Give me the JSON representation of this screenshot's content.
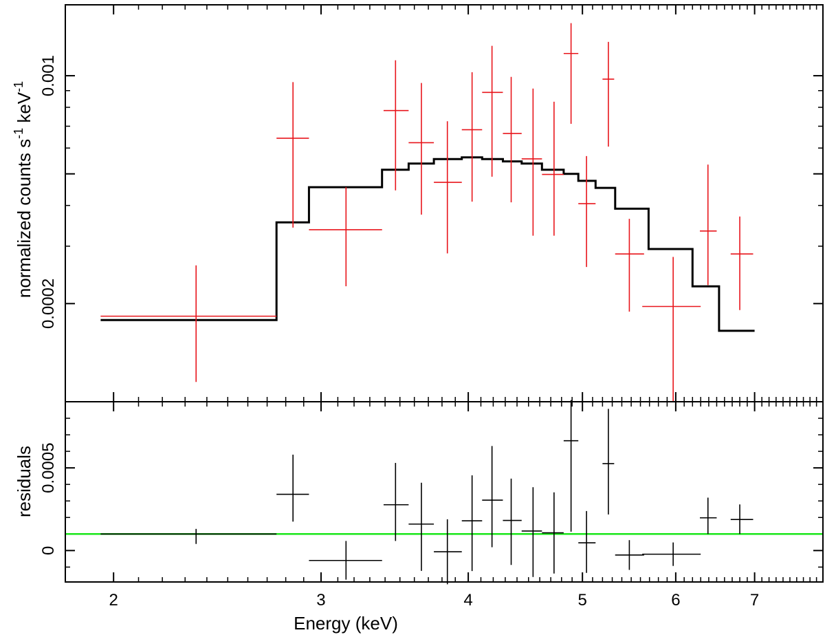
{
  "chart_data": [
    {
      "panel": "spectrum",
      "type": "scatter",
      "x_scale": "log",
      "y_scale": "log",
      "xlim": [
        1.82,
        8.0
      ],
      "ylim": [
        0.0001,
        0.00165
      ],
      "ylabel": "normalized counts s^-1 keV^-1",
      "ylabel_parts": {
        "main": "normalized counts s",
        "sup1": "-1",
        "mid": " keV",
        "sup2": "-1"
      },
      "yticks_labeled": [
        {
          "value": 0.0002,
          "label": "0.0002"
        },
        {
          "value": 0.001,
          "label": "0.001"
        }
      ],
      "yticks_major": [
        0.0001,
        0.0002,
        0.0005,
        0.001
      ],
      "yticks_minor": [
        0.0003,
        0.0004,
        0.0006,
        0.0007,
        0.0008,
        0.0009
      ],
      "series": [
        {
          "color": "#e8151b",
          "style": "crosses",
          "points": [
            {
              "x": 2.35,
              "xlo": 1.95,
              "xhi": 2.75,
              "y": 0.000183,
              "ylo": 0.000115,
              "yhi": 0.000262
            },
            {
              "x": 2.84,
              "xlo": 2.75,
              "xhi": 2.93,
              "y": 0.000643,
              "ylo": 0.000342,
              "yhi": 0.000956
            },
            {
              "x": 3.15,
              "xlo": 2.93,
              "xhi": 3.38,
              "y": 0.000337,
              "ylo": 0.000226,
              "yhi": 0.000455
            },
            {
              "x": 3.47,
              "xlo": 3.39,
              "xhi": 3.56,
              "y": 0.000782,
              "ylo": 0.000445,
              "yhi": 0.001115
            },
            {
              "x": 3.65,
              "xlo": 3.56,
              "xhi": 3.74,
              "y": 0.000623,
              "ylo": 0.000375,
              "yhi": 0.00095
            },
            {
              "x": 3.84,
              "xlo": 3.74,
              "xhi": 3.95,
              "y": 0.000471,
              "ylo": 0.000285,
              "yhi": 0.000725
            },
            {
              "x": 4.03,
              "xlo": 3.95,
              "xhi": 4.11,
              "y": 0.000683,
              "ylo": 0.000411,
              "yhi": 0.001025
            },
            {
              "x": 4.19,
              "xlo": 4.11,
              "xhi": 4.28,
              "y": 0.000889,
              "ylo": 0.00049,
              "yhi": 0.001235
            },
            {
              "x": 4.35,
              "xlo": 4.28,
              "xhi": 4.44,
              "y": 0.000665,
              "ylo": 0.000409,
              "yhi": 0.000992
            },
            {
              "x": 4.54,
              "xlo": 4.44,
              "xhi": 4.62,
              "y": 0.000556,
              "ylo": 0.000323,
              "yhi": 0.000913
            },
            {
              "x": 4.73,
              "xlo": 4.62,
              "xhi": 4.82,
              "y": 0.000498,
              "ylo": 0.000323,
              "yhi": 0.000832
            },
            {
              "x": 4.89,
              "xlo": 4.82,
              "xhi": 4.96,
              "y": 0.00117,
              "ylo": 0.000712,
              "yhi": 0.00145
            },
            {
              "x": 5.04,
              "xlo": 4.96,
              "xhi": 5.13,
              "y": 0.000405,
              "ylo": 0.000259,
              "yhi": 0.000567
            },
            {
              "x": 5.26,
              "xlo": 5.2,
              "xhi": 5.32,
              "y": 0.000976,
              "ylo": 0.000606,
              "yhi": 0.00127
            },
            {
              "x": 5.48,
              "xlo": 5.33,
              "xhi": 5.64,
              "y": 0.000284,
              "ylo": 0.000189,
              "yhi": 0.000364
            },
            {
              "x": 5.97,
              "xlo": 5.62,
              "xhi": 6.3,
              "y": 0.000196,
              "ylo": 0.0001,
              "yhi": 0.000278
            },
            {
              "x": 6.39,
              "xlo": 6.29,
              "xhi": 6.5,
              "y": 0.000334,
              "ylo": 0.000228,
              "yhi": 0.000534
            },
            {
              "x": 6.8,
              "xlo": 6.68,
              "xhi": 6.98,
              "y": 0.000284,
              "ylo": 0.000191,
              "yhi": 0.00037
            }
          ]
        },
        {
          "color": "#000000",
          "style": "step",
          "steps": [
            {
              "xlo": 1.95,
              "xhi": 2.75,
              "y": 0.000178
            },
            {
              "xlo": 2.75,
              "xhi": 2.93,
              "y": 0.000355
            },
            {
              "xlo": 2.93,
              "xhi": 3.38,
              "y": 0.000455
            },
            {
              "xlo": 3.38,
              "xhi": 3.56,
              "y": 0.000515
            },
            {
              "xlo": 3.56,
              "xhi": 3.74,
              "y": 0.000538
            },
            {
              "xlo": 3.74,
              "xhi": 3.95,
              "y": 0.000555
            },
            {
              "xlo": 3.95,
              "xhi": 4.11,
              "y": 0.000562
            },
            {
              "xlo": 4.11,
              "xhi": 4.28,
              "y": 0.000555
            },
            {
              "xlo": 4.28,
              "xhi": 4.44,
              "y": 0.000546
            },
            {
              "xlo": 4.44,
              "xhi": 4.62,
              "y": 0.000538
            },
            {
              "xlo": 4.62,
              "xhi": 4.82,
              "y": 0.000515
            },
            {
              "xlo": 4.82,
              "xhi": 4.96,
              "y": 0.0005
            },
            {
              "xlo": 4.96,
              "xhi": 5.13,
              "y": 0.000476
            },
            {
              "xlo": 5.13,
              "xhi": 5.33,
              "y": 0.000453
            },
            {
              "xlo": 5.33,
              "xhi": 5.69,
              "y": 0.000391
            },
            {
              "xlo": 5.69,
              "xhi": 6.2,
              "y": 0.000294
            },
            {
              "xlo": 6.2,
              "xhi": 6.53,
              "y": 0.000226
            },
            {
              "xlo": 6.53,
              "xhi": 7.0,
              "y": 0.000165
            }
          ]
        }
      ]
    },
    {
      "panel": "residuals",
      "type": "scatter",
      "x_scale": "log",
      "y_scale": "linear",
      "xlim": [
        1.82,
        8.0
      ],
      "ylim": [
        -0.00019,
        0.0009
      ],
      "xlabel": "Energy (keV)",
      "ylabel": "residuals",
      "xticks_labeled": [
        {
          "value": 2,
          "label": "2"
        },
        {
          "value": 3,
          "label": "3"
        },
        {
          "value": 4,
          "label": "4"
        },
        {
          "value": 5,
          "label": "5"
        },
        {
          "value": 6,
          "label": "6"
        },
        {
          "value": 7,
          "label": "7"
        }
      ],
      "yticks_labeled": [
        {
          "value": 0,
          "label": "0"
        },
        {
          "value": 0.0005,
          "label": "0.0005"
        }
      ],
      "yticks_minor": [
        -0.0001,
        0.0001,
        0.0002,
        0.0003,
        0.0004,
        0.0006,
        0.0007,
        0.0008
      ],
      "reference_line": {
        "y": 0.0001,
        "color": "#19e619"
      },
      "series": [
        {
          "color": "#000000",
          "style": "crosses",
          "points": [
            {
              "x": 2.35,
              "xlo": 1.95,
              "xhi": 2.75,
              "y": 0.0001,
              "ylo": 4e-05,
              "yhi": 0.000131
            },
            {
              "x": 2.84,
              "xlo": 2.75,
              "xhi": 2.93,
              "y": 0.00034,
              "ylo": 0.000175,
              "yhi": 0.00058
            },
            {
              "x": 3.15,
              "xlo": 2.93,
              "xhi": 3.38,
              "y": -6e-05,
              "ylo": -0.000176,
              "yhi": 5.8e-05
            },
            {
              "x": 3.47,
              "xlo": 3.39,
              "xhi": 3.56,
              "y": 0.000277,
              "ylo": 5.8e-05,
              "yhi": 0.00053
            },
            {
              "x": 3.65,
              "xlo": 3.56,
              "xhi": 3.74,
              "y": 0.00016,
              "ylo": -0.000123,
              "yhi": 0.00041
            },
            {
              "x": 3.84,
              "xlo": 3.74,
              "xhi": 3.95,
              "y": -7e-06,
              "ylo": -0.000204,
              "yhi": 0.000189
            },
            {
              "x": 4.03,
              "xlo": 3.95,
              "xhi": 4.11,
              "y": 0.00018,
              "ylo": -0.000124,
              "yhi": 0.000455
            },
            {
              "x": 4.19,
              "xlo": 4.11,
              "xhi": 4.28,
              "y": 0.000305,
              "ylo": 2e-05,
              "yhi": 0.000632
            },
            {
              "x": 4.35,
              "xlo": 4.28,
              "xhi": 4.44,
              "y": 0.000182,
              "ylo": -8.7e-05,
              "yhi": 0.000435
            },
            {
              "x": 4.54,
              "xlo": 4.44,
              "xhi": 4.62,
              "y": 0.000118,
              "ylo": -0.00016,
              "yhi": 0.000383
            },
            {
              "x": 4.73,
              "xlo": 4.62,
              "xhi": 4.82,
              "y": 0.000107,
              "ylo": -0.000139,
              "yhi": 0.000352
            },
            {
              "x": 4.89,
              "xlo": 4.82,
              "xhi": 4.96,
              "y": 0.000664,
              "ylo": 0.000114,
              "yhi": 0.00091
            },
            {
              "x": 5.04,
              "xlo": 4.96,
              "xhi": 5.13,
              "y": 4.7e-05,
              "ylo": -0.000135,
              "yhi": 0.000239
            },
            {
              "x": 5.26,
              "xlo": 5.2,
              "xhi": 5.32,
              "y": 0.000526,
              "ylo": 0.000218,
              "yhi": 0.000857
            },
            {
              "x": 5.48,
              "xlo": 5.33,
              "xhi": 5.64,
              "y": -2.7e-05,
              "ylo": -0.000117,
              "yhi": 6.3e-05
            },
            {
              "x": 5.97,
              "xlo": 5.62,
              "xhi": 6.3,
              "y": -2.2e-05,
              "ylo": -9.3e-05,
              "yhi": 4.9e-05
            },
            {
              "x": 6.39,
              "xlo": 6.29,
              "xhi": 6.5,
              "y": 0.000198,
              "ylo": 0.0001,
              "yhi": 0.00032
            },
            {
              "x": 6.8,
              "xlo": 6.68,
              "xhi": 6.98,
              "y": 0.000188,
              "ylo": 0.0001,
              "yhi": 0.000279
            }
          ]
        }
      ]
    }
  ]
}
